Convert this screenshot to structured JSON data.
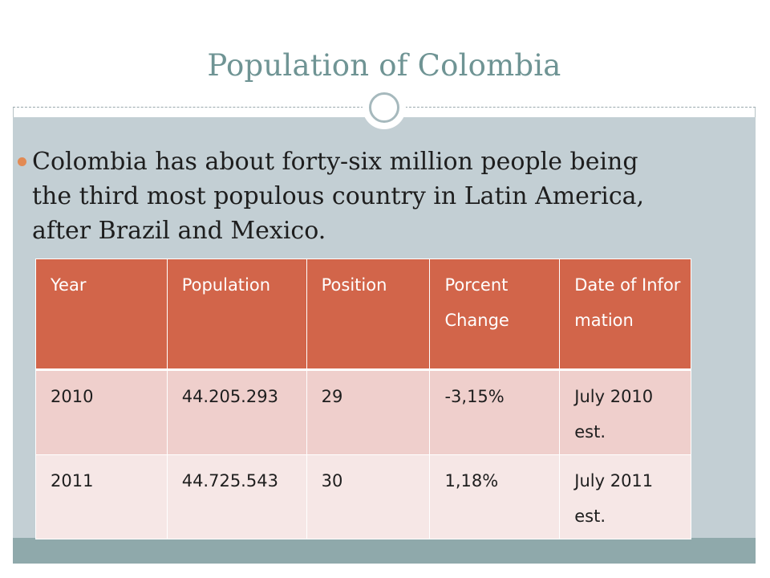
{
  "slide": {
    "title": "Population of Colombia",
    "bullet": "Colombia has about forty-six million people being the third most populous country in Latin America, after Brazil and Mexico."
  },
  "table": {
    "headers": [
      "Year",
      "Population",
      "Position",
      "Porcent Change",
      "Date of Information"
    ],
    "rows": [
      [
        "2010",
        "44.205.293",
        "29",
        "-3,15%",
        "July 2010 est."
      ],
      [
        "2011",
        "44.725.543",
        "30",
        "1,18%",
        "July 2011 est."
      ]
    ]
  },
  "colors": {
    "title": "#6f9494",
    "header_fill": "#d2654a",
    "row_odd_fill": "#efcfcc",
    "row_even_fill": "#f6e7e6",
    "bullet": "#e28a53",
    "body_band": "#c3cfd4",
    "footer_band": "#8fa9ab"
  }
}
